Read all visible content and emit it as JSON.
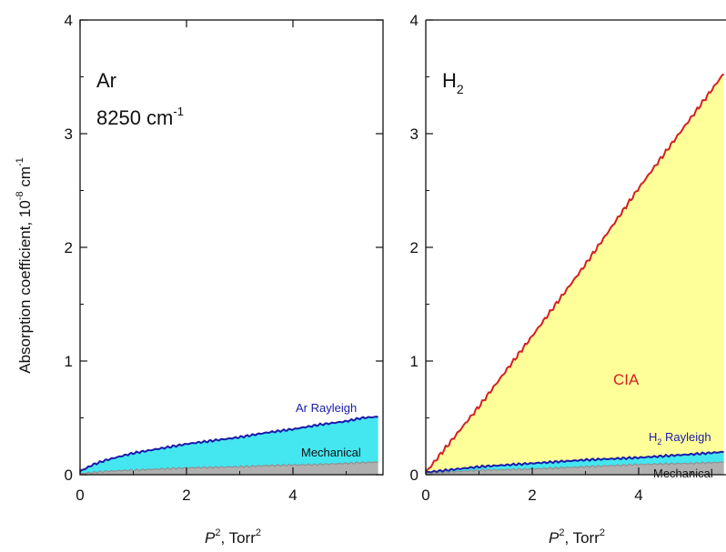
{
  "chart_data": [
    {
      "type": "area",
      "panel_label": "Ar",
      "panel_label_2": "8250 cm",
      "panel_label_2_sup": "-1",
      "xlabel_italic": "P",
      "xlabel_sup": "2",
      "xlabel_rest": ", Torr",
      "xlabel_rest_sup": "2",
      "ylabel": "Absorption coefficient, 10",
      "ylabel_sup1": "-8",
      "ylabel_mid": " cm",
      "ylabel_sup2": "-1",
      "xlim": [
        0,
        5.6
      ],
      "ylim": [
        0,
        4
      ],
      "xticks": [
        0,
        2,
        4
      ],
      "yticks": [
        0,
        1,
        2,
        3,
        4
      ],
      "series": [
        {
          "name": "Mechanical",
          "color": "#909090",
          "fill": "#b0b0b0",
          "x": [
            0,
            0.5,
            1,
            1.5,
            2,
            2.5,
            3,
            3.5,
            4,
            4.5,
            5,
            5.5,
            5.6
          ],
          "y": [
            0.01,
            0.03,
            0.04,
            0.05,
            0.06,
            0.065,
            0.07,
            0.08,
            0.085,
            0.09,
            0.1,
            0.11,
            0.11
          ]
        },
        {
          "name": "Ar Rayleigh",
          "color": "#1a1aaa",
          "fill": "#44e6f0",
          "x": [
            0,
            0.25,
            0.5,
            1,
            1.5,
            2,
            2.5,
            3,
            3.5,
            4,
            4.5,
            5,
            5.3,
            5.6
          ],
          "y": [
            0.03,
            0.09,
            0.13,
            0.19,
            0.23,
            0.27,
            0.3,
            0.33,
            0.37,
            0.4,
            0.44,
            0.47,
            0.5,
            0.51
          ]
        }
      ],
      "annotations": [
        "Ar Rayleigh",
        "Mechanical"
      ]
    },
    {
      "type": "area",
      "panel_label": "H",
      "panel_label_sub": "2",
      "xlabel_italic": "P",
      "xlabel_sup": "2",
      "xlabel_rest": ", Torr",
      "xlabel_rest_sup": "2",
      "xlim": [
        0,
        5.6
      ],
      "ylim": [
        0,
        4
      ],
      "xticks": [
        0,
        2,
        4
      ],
      "yticks": [
        0,
        1,
        2,
        3,
        4
      ],
      "series": [
        {
          "name": "Mechanical",
          "color": "#909090",
          "fill": "#b0b0b0",
          "x": [
            0,
            1,
            2,
            3,
            4,
            5,
            5.6
          ],
          "y": [
            0.01,
            0.04,
            0.05,
            0.07,
            0.09,
            0.1,
            0.11
          ]
        },
        {
          "name": "H2 Rayleigh",
          "color": "#1a1aaa",
          "fill": "#44e6f0",
          "x": [
            0,
            1,
            2,
            3,
            4,
            5,
            5.6
          ],
          "y": [
            0.02,
            0.07,
            0.1,
            0.13,
            0.15,
            0.18,
            0.2
          ]
        },
        {
          "name": "CIA",
          "color": "#d42020",
          "fill": "#ffff99",
          "x": [
            0,
            1,
            2,
            3,
            4,
            5,
            5.6
          ],
          "y": [
            0.02,
            0.6,
            1.22,
            1.85,
            2.52,
            3.15,
            3.53
          ]
        }
      ],
      "annotations": [
        "CIA",
        "H2 Rayleigh",
        "Mechanical"
      ],
      "label_cia": "CIA",
      "label_rayleigh": "H",
      "label_rayleigh_sub": "2",
      "label_rayleigh_rest": " Rayleigh",
      "label_mechanical": "Mechanical"
    }
  ],
  "colors": {
    "mechanical_fill": "#b0b0b0",
    "rayleigh_fill": "#44e6f0",
    "cia_fill": "#ffff99",
    "rayleigh_line": "#1a1aaa",
    "cia_line": "#d42020",
    "mechanical_line": "#909090"
  }
}
